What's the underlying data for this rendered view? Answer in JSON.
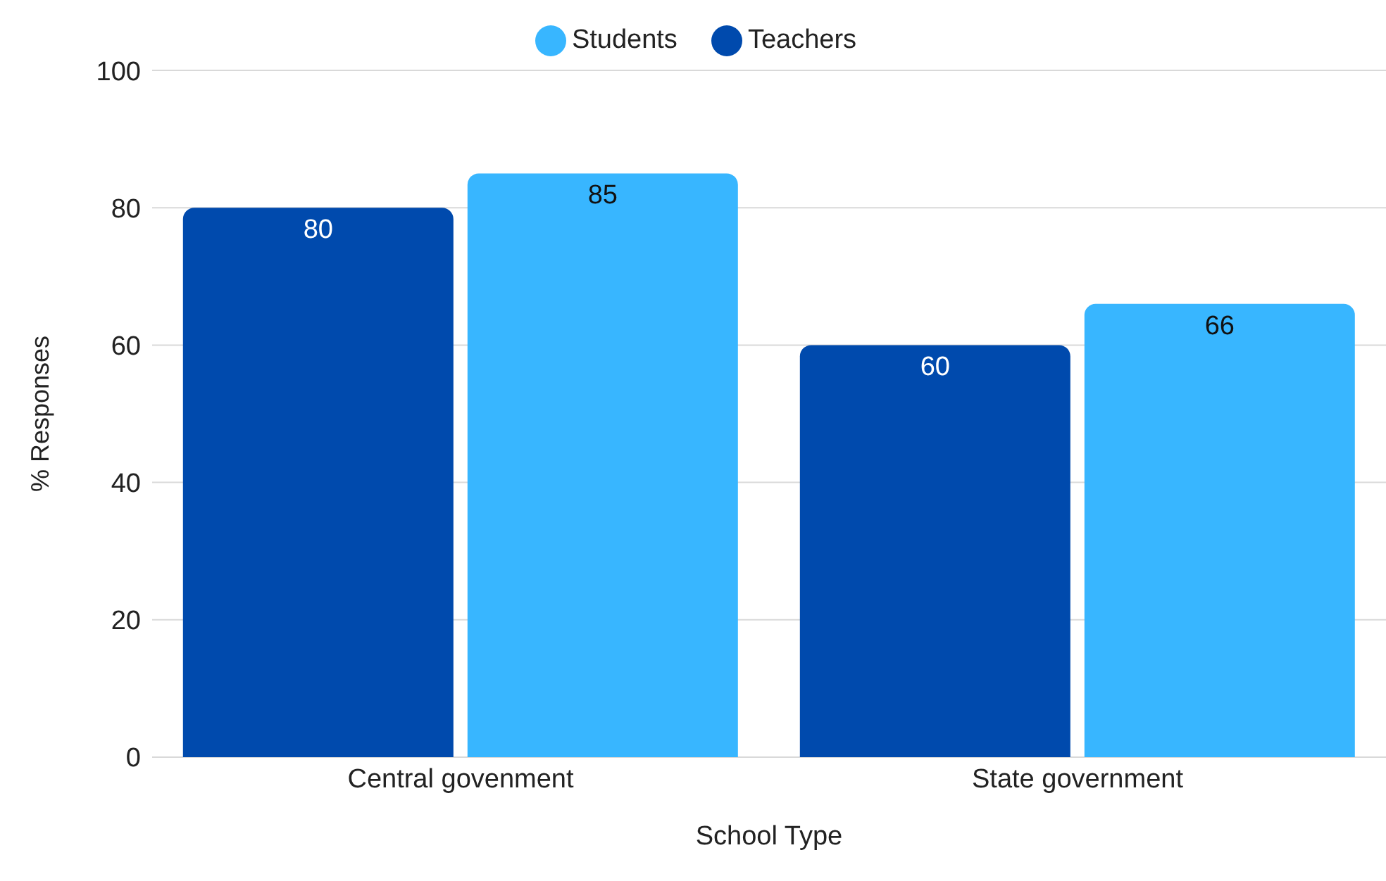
{
  "chart_data": {
    "type": "bar",
    "xlabel": "School Type",
    "ylabel": "% Responses",
    "categories": [
      "Central govenment",
      "State government"
    ],
    "series": [
      {
        "name": "Teachers",
        "color": "#004aad",
        "values": [
          80,
          60
        ]
      },
      {
        "name": "Students",
        "color": "#38b6ff",
        "values": [
          85,
          66
        ]
      }
    ],
    "ylim": [
      0,
      100
    ],
    "yticks": [
      0,
      20,
      40,
      60,
      80,
      100
    ],
    "grid": "y",
    "legend": "top",
    "data_labels": true
  }
}
